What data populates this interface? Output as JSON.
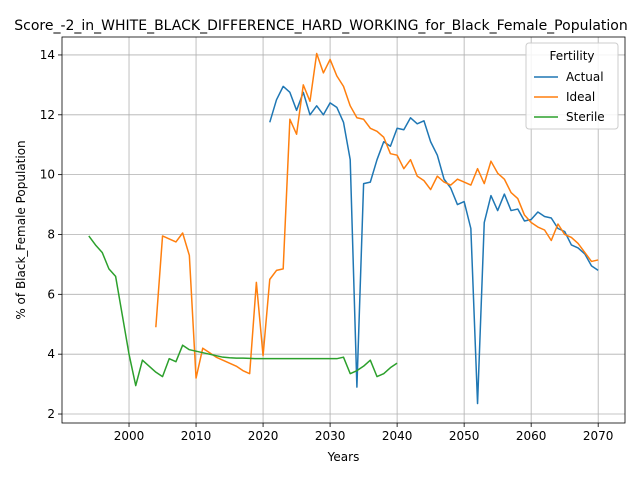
{
  "chart_data": {
    "type": "line",
    "title": "Score_-2_in_WHITE_BLACK_DIFFERENCE_HARD_WORKING_for_Black_Female_Population",
    "xlabel": "Years",
    "ylabel": "% of Black_Female Population",
    "xlim": [
      1990,
      2074
    ],
    "ylim": [
      1.7,
      14.6
    ],
    "xticks": [
      2000,
      2010,
      2020,
      2030,
      2040,
      2050,
      2060,
      2070
    ],
    "yticks": [
      2,
      4,
      6,
      8,
      10,
      12,
      14
    ],
    "grid": true,
    "legend": {
      "title": "Fertility",
      "placement": "top-right"
    },
    "series": [
      {
        "name": "Actual",
        "color": "#1f77b4",
        "points": [
          [
            2021,
            11.75
          ],
          [
            2022,
            12.5
          ],
          [
            2023,
            12.95
          ],
          [
            2024,
            12.75
          ],
          [
            2025,
            12.15
          ],
          [
            2026,
            12.75
          ],
          [
            2027,
            12.0
          ],
          [
            2028,
            12.3
          ],
          [
            2029,
            12.0
          ],
          [
            2030,
            12.4
          ],
          [
            2031,
            12.25
          ],
          [
            2032,
            11.75
          ],
          [
            2033,
            10.5
          ],
          [
            2034,
            2.9
          ],
          [
            2035,
            9.7
          ],
          [
            2036,
            9.75
          ],
          [
            2037,
            10.5
          ],
          [
            2038,
            11.1
          ],
          [
            2039,
            10.95
          ],
          [
            2040,
            11.55
          ],
          [
            2041,
            11.5
          ],
          [
            2042,
            11.9
          ],
          [
            2043,
            11.7
          ],
          [
            2044,
            11.8
          ],
          [
            2045,
            11.1
          ],
          [
            2046,
            10.65
          ],
          [
            2047,
            9.85
          ],
          [
            2048,
            9.55
          ],
          [
            2049,
            9.0
          ],
          [
            2050,
            9.1
          ],
          [
            2051,
            8.2
          ],
          [
            2052,
            2.35
          ],
          [
            2053,
            8.4
          ],
          [
            2054,
            9.3
          ],
          [
            2055,
            8.8
          ],
          [
            2056,
            9.35
          ],
          [
            2057,
            8.8
          ],
          [
            2058,
            8.85
          ],
          [
            2059,
            8.45
          ],
          [
            2060,
            8.5
          ],
          [
            2061,
            8.75
          ],
          [
            2062,
            8.6
          ],
          [
            2063,
            8.55
          ],
          [
            2064,
            8.2
          ],
          [
            2065,
            8.1
          ],
          [
            2066,
            7.65
          ],
          [
            2067,
            7.55
          ],
          [
            2068,
            7.35
          ],
          [
            2069,
            6.95
          ],
          [
            2070,
            6.8
          ]
        ]
      },
      {
        "name": "Ideal",
        "color": "#ff7f0e",
        "points": [
          [
            2004,
            4.9
          ],
          [
            2005,
            7.95
          ],
          [
            2006,
            7.85
          ],
          [
            2007,
            7.75
          ],
          [
            2008,
            8.05
          ],
          [
            2009,
            7.3
          ],
          [
            2010,
            3.2
          ],
          [
            2011,
            4.2
          ],
          [
            2012,
            4.05
          ],
          [
            2013,
            3.9
          ],
          [
            2014,
            3.8
          ],
          [
            2015,
            3.7
          ],
          [
            2016,
            3.6
          ],
          [
            2017,
            3.45
          ],
          [
            2018,
            3.35
          ],
          [
            2019,
            6.4
          ],
          [
            2020,
            3.95
          ],
          [
            2021,
            6.5
          ],
          [
            2022,
            6.8
          ],
          [
            2023,
            6.85
          ],
          [
            2024,
            11.85
          ],
          [
            2025,
            11.35
          ],
          [
            2026,
            13.0
          ],
          [
            2027,
            12.45
          ],
          [
            2028,
            14.05
          ],
          [
            2029,
            13.4
          ],
          [
            2030,
            13.85
          ],
          [
            2031,
            13.3
          ],
          [
            2032,
            12.95
          ],
          [
            2033,
            12.3
          ],
          [
            2034,
            11.9
          ],
          [
            2035,
            11.85
          ],
          [
            2036,
            11.55
          ],
          [
            2037,
            11.45
          ],
          [
            2038,
            11.25
          ],
          [
            2039,
            10.7
          ],
          [
            2040,
            10.65
          ],
          [
            2041,
            10.2
          ],
          [
            2042,
            10.5
          ],
          [
            2043,
            9.95
          ],
          [
            2044,
            9.8
          ],
          [
            2045,
            9.5
          ],
          [
            2046,
            9.95
          ],
          [
            2047,
            9.75
          ],
          [
            2048,
            9.65
          ],
          [
            2049,
            9.85
          ],
          [
            2050,
            9.75
          ],
          [
            2051,
            9.65
          ],
          [
            2052,
            10.2
          ],
          [
            2053,
            9.7
          ],
          [
            2054,
            10.45
          ],
          [
            2055,
            10.05
          ],
          [
            2056,
            9.85
          ],
          [
            2057,
            9.4
          ],
          [
            2058,
            9.2
          ],
          [
            2059,
            8.65
          ],
          [
            2060,
            8.4
          ],
          [
            2061,
            8.25
          ],
          [
            2062,
            8.15
          ],
          [
            2063,
            7.8
          ],
          [
            2064,
            8.35
          ],
          [
            2065,
            8.0
          ],
          [
            2066,
            7.9
          ],
          [
            2067,
            7.7
          ],
          [
            2068,
            7.4
          ],
          [
            2069,
            7.1
          ],
          [
            2070,
            7.15
          ]
        ]
      },
      {
        "name": "Sterile",
        "color": "#2ca02c",
        "points": [
          [
            1994,
            7.95
          ],
          [
            1995,
            7.65
          ],
          [
            1996,
            7.4
          ],
          [
            1997,
            6.85
          ],
          [
            1998,
            6.6
          ],
          [
            1999,
            5.3
          ],
          [
            2000,
            4.0
          ],
          [
            2001,
            2.95
          ],
          [
            2002,
            3.8
          ],
          [
            2003,
            3.6
          ],
          [
            2004,
            3.4
          ],
          [
            2005,
            3.25
          ],
          [
            2006,
            3.85
          ],
          [
            2007,
            3.75
          ],
          [
            2008,
            4.3
          ],
          [
            2009,
            4.15
          ],
          [
            2010,
            4.1
          ],
          [
            2011,
            4.05
          ],
          [
            2012,
            4.0
          ],
          [
            2013,
            3.95
          ],
          [
            2014,
            3.9
          ],
          [
            2015,
            3.88
          ],
          [
            2016,
            3.87
          ],
          [
            2017,
            3.87
          ],
          [
            2018,
            3.86
          ],
          [
            2019,
            3.85
          ],
          [
            2020,
            3.85
          ],
          [
            2021,
            3.85
          ],
          [
            2022,
            3.85
          ],
          [
            2023,
            3.85
          ],
          [
            2024,
            3.85
          ],
          [
            2025,
            3.85
          ],
          [
            2026,
            3.85
          ],
          [
            2027,
            3.85
          ],
          [
            2028,
            3.85
          ],
          [
            2029,
            3.85
          ],
          [
            2030,
            3.85
          ],
          [
            2031,
            3.85
          ],
          [
            2032,
            3.9
          ],
          [
            2033,
            3.35
          ],
          [
            2034,
            3.45
          ],
          [
            2035,
            3.6
          ],
          [
            2036,
            3.8
          ],
          [
            2037,
            3.25
          ],
          [
            2038,
            3.35
          ],
          [
            2039,
            3.55
          ],
          [
            2040,
            3.7
          ]
        ]
      }
    ]
  }
}
